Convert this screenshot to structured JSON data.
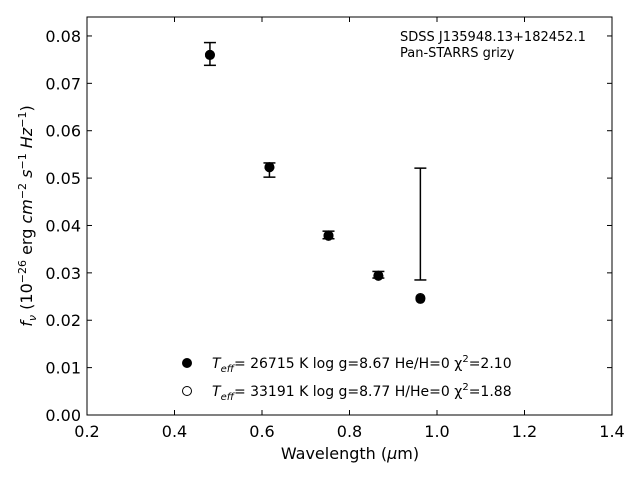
{
  "chart_data": {
    "type": "scatter",
    "xlabel": "Wavelength (μm)",
    "ylabel": "f_ν (10^-26 erg cm^-2 s^-1 Hz^-1)",
    "xlim": [
      0.2,
      1.4
    ],
    "ylim": [
      0.0,
      0.084
    ],
    "x_ticks": [
      0.2,
      0.4,
      0.6,
      0.8,
      1.0,
      1.2,
      1.4
    ],
    "x_tick_labels": [
      "0.2",
      "0.4",
      "0.6",
      "0.8",
      "1.0",
      "1.2",
      "1.4"
    ],
    "y_ticks": [
      0.0,
      0.01,
      0.02,
      0.03,
      0.04,
      0.05,
      0.06,
      0.07,
      0.08
    ],
    "y_tick_labels": [
      "0.00",
      "0.01",
      "0.02",
      "0.03",
      "0.04",
      "0.05",
      "0.06",
      "0.07",
      "0.08"
    ],
    "grid": false,
    "annotations": [
      "SDSS J135948.13+182452.1",
      "Pan-STARRS grizy"
    ],
    "observed": {
      "x": [
        0.481,
        0.617,
        0.752,
        0.866,
        0.962
      ],
      "y": [
        0.0762,
        0.0517,
        0.038,
        0.0296,
        0.0403
      ],
      "yerr_low": [
        0.0024,
        0.0015,
        0.0008,
        0.0007,
        0.0118
      ],
      "yerr_high": [
        0.0024,
        0.0015,
        0.0008,
        0.0007,
        0.0118
      ]
    },
    "series": [
      {
        "marker": "filled-circle",
        "color": "#000000",
        "legend_parts": {
          "teff": "T",
          "teff_sub": "eff",
          "rest": "= 26715 K  log g=8.67  He/H=0  χ",
          "chi_sup": "2",
          "chi_val": "=2.10"
        },
        "x": [
          0.481,
          0.617,
          0.752,
          0.866,
          0.962
        ],
        "y": [
          0.076,
          0.0523,
          0.0378,
          0.0294,
          0.0245
        ]
      },
      {
        "marker": "open-circle",
        "color": "#000000",
        "legend_parts": {
          "teff": "T",
          "teff_sub": "eff",
          "rest": "= 33191 K  log g=8.77  H/He=0  χ",
          "chi_sup": "2",
          "chi_val": "=1.88"
        },
        "x": [
          0.481,
          0.617,
          0.752,
          0.866,
          0.962
        ],
        "y": [
          0.076,
          0.0523,
          0.0379,
          0.0294,
          0.0247
        ]
      }
    ]
  }
}
